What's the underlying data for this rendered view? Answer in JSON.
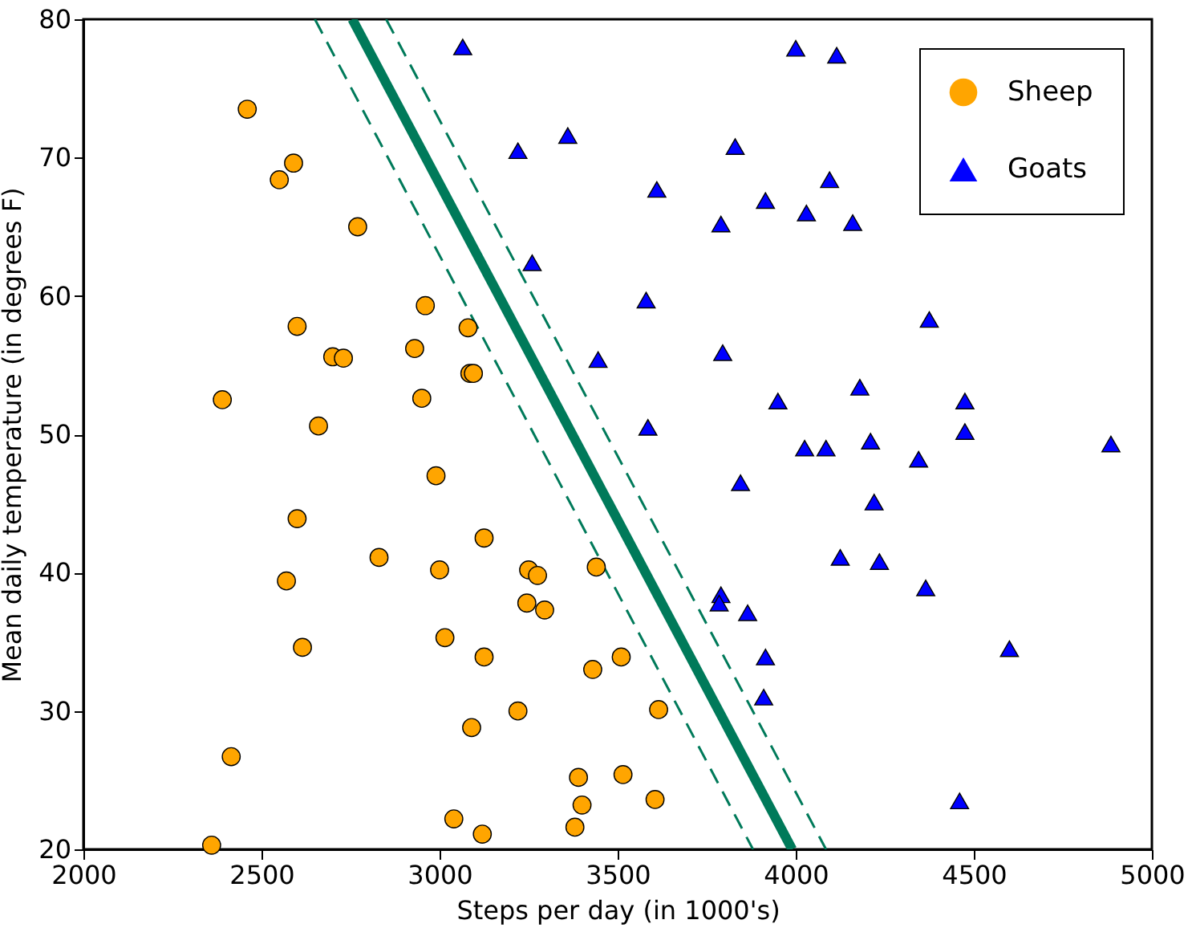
{
  "chart_data": {
    "type": "scatter",
    "xlabel": "Steps per day (in 1000's)",
    "ylabel": "Mean daily temperature (in degrees F)",
    "xlim": [
      2000,
      5000
    ],
    "ylim": [
      20,
      80
    ],
    "xticks": [
      2000,
      2500,
      3000,
      3500,
      4000,
      4500,
      5000
    ],
    "yticks": [
      20,
      30,
      40,
      50,
      60,
      70,
      80
    ],
    "grid": false,
    "legend": "top right",
    "series": [
      {
        "type": "line",
        "color": "#007a5a",
        "line_style": "dashed",
        "x": [
          2650,
          3880
        ],
        "values": [
          80,
          20
        ]
      },
      {
        "type": "line",
        "color": "#007a5a",
        "line_style": "dashed",
        "x": [
          2850,
          4085
        ],
        "values": [
          80,
          20
        ]
      },
      {
        "type": "line",
        "color": "#007a5a",
        "line_style": "solid",
        "x": [
          2755,
          3990
        ],
        "values": [
          80,
          20
        ]
      },
      {
        "name": "Sheep",
        "marker": "circle",
        "color": "#ffa500",
        "x": [
          2460,
          2590,
          2550,
          2770,
          2960,
          2600,
          3080,
          2700,
          2730,
          2930,
          3085,
          3095,
          2390,
          2950,
          2660,
          2990,
          2600,
          3125,
          2830,
          3000,
          3250,
          3275,
          3440,
          2570,
          3245,
          3295,
          3015,
          2615,
          3125,
          3430,
          3510,
          3220,
          3615,
          3090,
          2415,
          3390,
          3515,
          3400,
          3605,
          3040,
          3380,
          3120,
          2360
        ],
        "values": [
          73.5,
          69.6,
          68.4,
          65.0,
          59.3,
          57.8,
          57.7,
          55.6,
          55.5,
          56.2,
          54.4,
          54.4,
          52.5,
          52.6,
          50.6,
          47.0,
          43.9,
          42.5,
          41.1,
          40.2,
          40.2,
          39.8,
          40.4,
          39.4,
          37.8,
          37.3,
          35.3,
          34.6,
          33.9,
          33.0,
          33.9,
          30.0,
          30.1,
          28.8,
          26.7,
          25.2,
          25.4,
          23.2,
          23.6,
          22.2,
          21.6,
          21.1,
          20.3
        ]
      },
      {
        "name": "Goats",
        "marker": "triangle",
        "color": "#0000ff",
        "x": [
          3065,
          3220,
          3360,
          3260,
          3445,
          4000,
          4115,
          3830,
          3610,
          4095,
          3915,
          4030,
          3790,
          4160,
          3580,
          4375,
          3795,
          4180,
          3950,
          4475,
          3585,
          4475,
          4025,
          4085,
          4210,
          4885,
          4345,
          3845,
          4220,
          4125,
          4235,
          4365,
          3790,
          3785,
          3865,
          4600,
          3915,
          3910,
          4460
        ],
        "values": [
          78.0,
          70.5,
          71.6,
          62.4,
          55.4,
          77.9,
          77.4,
          70.8,
          67.7,
          68.4,
          66.9,
          66.0,
          65.2,
          65.3,
          59.7,
          58.3,
          55.9,
          53.4,
          52.4,
          52.4,
          50.5,
          50.2,
          49.0,
          49.0,
          49.5,
          49.3,
          48.2,
          46.5,
          45.1,
          41.1,
          40.8,
          38.9,
          38.4,
          37.8,
          37.1,
          34.5,
          33.9,
          31.0,
          23.5
        ]
      }
    ]
  }
}
